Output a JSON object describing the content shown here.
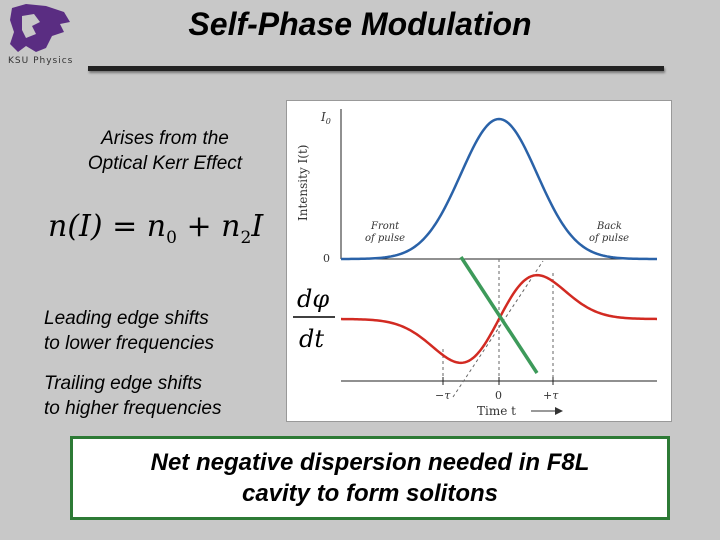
{
  "header": {
    "title": "Self-Phase Modulation",
    "logo_text": "KSU Physics",
    "logo_icon": "wildcat-icon"
  },
  "left": {
    "kerr_text": [
      "Arises from the",
      "Optical Kerr Effect"
    ],
    "equation": {
      "lhs": "n(I) = n",
      "sub0": "0",
      "plus": " + n",
      "sub2": "2",
      "rhs": "I"
    },
    "leading_text": [
      "Leading edge shifts",
      "to lower frequencies"
    ],
    "trailing_text": [
      "Trailing edge shifts",
      "to higher frequencies"
    ]
  },
  "figure": {
    "i0_label": "I",
    "i0_sub": "0",
    "y_axis_label": "Intensity I(t)",
    "zero_top": "0",
    "front_label": [
      "Front",
      "of pulse"
    ],
    "back_label": [
      "Back",
      "of pulse"
    ],
    "dphi_num": "dφ",
    "dphi_den": "dt",
    "tick_minus_tau": "−τ",
    "tick_zero": "0",
    "tick_plus_tau": "+τ",
    "x_axis_label": "Time t",
    "colors": {
      "intensity": "#2a62a8",
      "derivative": "#d22a22",
      "overlay": "#3d9a5a"
    }
  },
  "callout": {
    "text": [
      "Net negative dispersion needed in F8L",
      "cavity to form solitons"
    ],
    "border_color": "#2d7a35"
  }
}
